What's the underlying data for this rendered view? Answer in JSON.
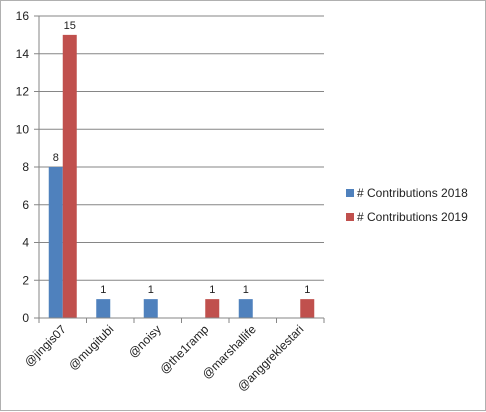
{
  "chart_data": {
    "type": "bar",
    "title": "",
    "xlabel": "",
    "ylabel": "",
    "categories": [
      "@jingis07",
      "@mugitubi",
      "@noisy",
      "@the1ramp",
      "@marshallife",
      "@anggreklestari"
    ],
    "series": [
      {
        "name": "# Contributions 2018",
        "color": "#4f81bd",
        "values": [
          8,
          1,
          1,
          null,
          1,
          null
        ]
      },
      {
        "name": "# Contributions 2019",
        "color": "#c0504d",
        "values": [
          15,
          null,
          null,
          1,
          null,
          1
        ]
      }
    ],
    "ylim": [
      0,
      16
    ],
    "yticks": [
      0,
      2,
      4,
      6,
      8,
      10,
      12,
      14,
      16
    ],
    "grid": true,
    "legend_position": "right"
  }
}
